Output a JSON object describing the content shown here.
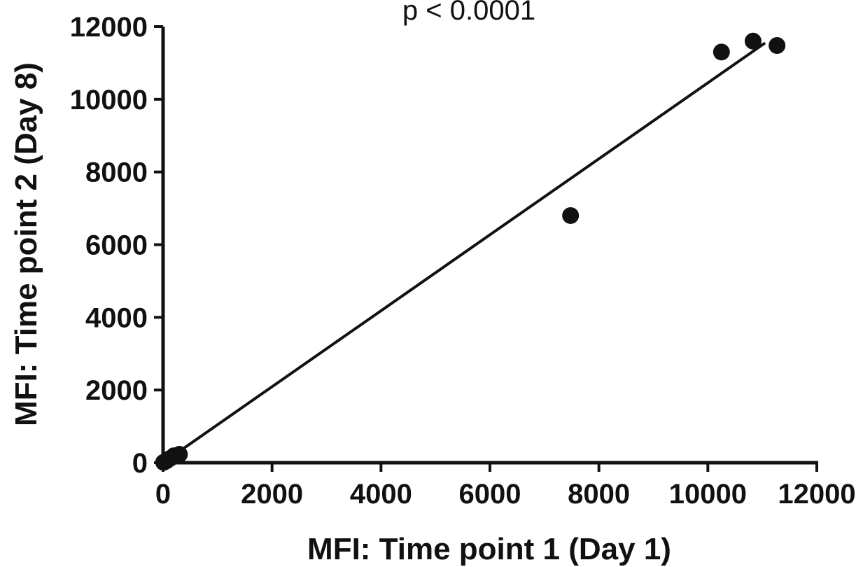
{
  "chart_data": {
    "type": "scatter",
    "title": "",
    "annotation": "p < 0.0001",
    "xlabel": "MFI: Time point 1 (Day 1)",
    "ylabel": "MFI:  Time point 2 (Day 8)",
    "xlim": [
      0,
      12000
    ],
    "ylim": [
      0,
      12000
    ],
    "x_ticks": [
      0,
      2000,
      4000,
      6000,
      8000,
      10000,
      12000
    ],
    "y_ticks": [
      0,
      2000,
      4000,
      6000,
      8000,
      10000,
      12000
    ],
    "x_tick_labels": [
      "0",
      "2000",
      "4000",
      "6000",
      "8000",
      "10000",
      "12000"
    ],
    "y_tick_labels": [
      "0",
      "2000",
      "4000",
      "6000",
      "8000",
      "10000",
      "12000"
    ],
    "grid": false,
    "legend": "none",
    "series": [
      {
        "points": [
          {
            "x": 10,
            "y": 10
          },
          {
            "x": 60,
            "y": 50
          },
          {
            "x": 120,
            "y": 110
          },
          {
            "x": 200,
            "y": 190
          },
          {
            "x": 300,
            "y": 230
          },
          {
            "x": 7480,
            "y": 6800
          },
          {
            "x": 10250,
            "y": 11300
          },
          {
            "x": 10830,
            "y": 11600
          },
          {
            "x": 11270,
            "y": 11480
          }
        ]
      }
    ],
    "fit_line": {
      "x": [
        0,
        11050
      ],
      "y": [
        0,
        11550
      ]
    },
    "colors": {
      "points": "#111111",
      "line": "#111111",
      "axes": "#111111"
    }
  }
}
